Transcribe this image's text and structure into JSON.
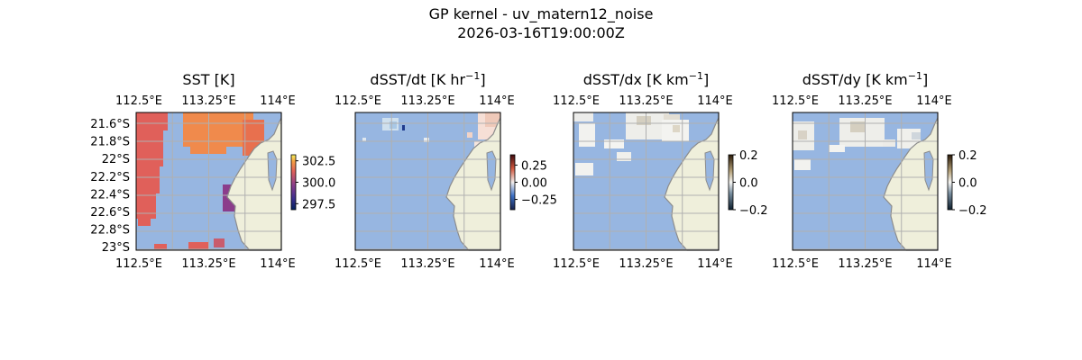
{
  "figure": {
    "title": "GP kernel - uv_matern12_noise",
    "subtitle": "2026-03-16T19:00:00Z"
  },
  "colors": {
    "ocean": "#97b6e1",
    "land": "#efefdb",
    "coast": "#8c8c8c",
    "grid": "#b0b0b0"
  },
  "chart_data": [
    {
      "type": "heatmap",
      "panel": "sst",
      "title": "SST [K]",
      "xticks": [
        "112.5°E",
        "113.25°E",
        "114°E"
      ],
      "yticks": [
        "21.6°S",
        "21.8°S",
        "22°S",
        "22.2°S",
        "22.4°S",
        "22.6°S",
        "22.8°S",
        "23°S"
      ],
      "colorbar": {
        "ticks": [
          "302.5",
          "300.0",
          "297.5"
        ],
        "range": [
          296.8,
          303.2
        ],
        "cmap": "thermal"
      }
    },
    {
      "type": "heatmap",
      "panel": "dsst_dt",
      "title": "dSST/dt [K hr",
      "title_sup": "−1",
      "title_end": "]",
      "xticks": [
        "112.5°E",
        "113.25°E",
        "114°E"
      ],
      "colorbar": {
        "ticks": [
          "0.25",
          "0.00",
          "−0.25"
        ],
        "range": [
          -0.4,
          0.4
        ],
        "cmap": "balance"
      }
    },
    {
      "type": "heatmap",
      "panel": "dsst_dx",
      "title": "dSST/dx [K km",
      "title_sup": "−1",
      "title_end": "]",
      "xticks": [
        "112.5°E",
        "113.25°E",
        "114°E"
      ],
      "colorbar": {
        "ticks": [
          "0.2",
          "0.0",
          "−0.2"
        ],
        "range": [
          -0.2,
          0.2
        ],
        "cmap": "diff"
      }
    },
    {
      "type": "heatmap",
      "panel": "dsst_dy",
      "title": "dSST/dy [K km",
      "title_sup": "−1",
      "title_end": "]",
      "xticks": [
        "112.5°E",
        "113.25°E",
        "114°E"
      ],
      "colorbar": {
        "ticks": [
          "0.2",
          "0.0",
          "−0.2"
        ],
        "range": [
          -0.2,
          0.2
        ],
        "cmap": "diff"
      }
    }
  ]
}
